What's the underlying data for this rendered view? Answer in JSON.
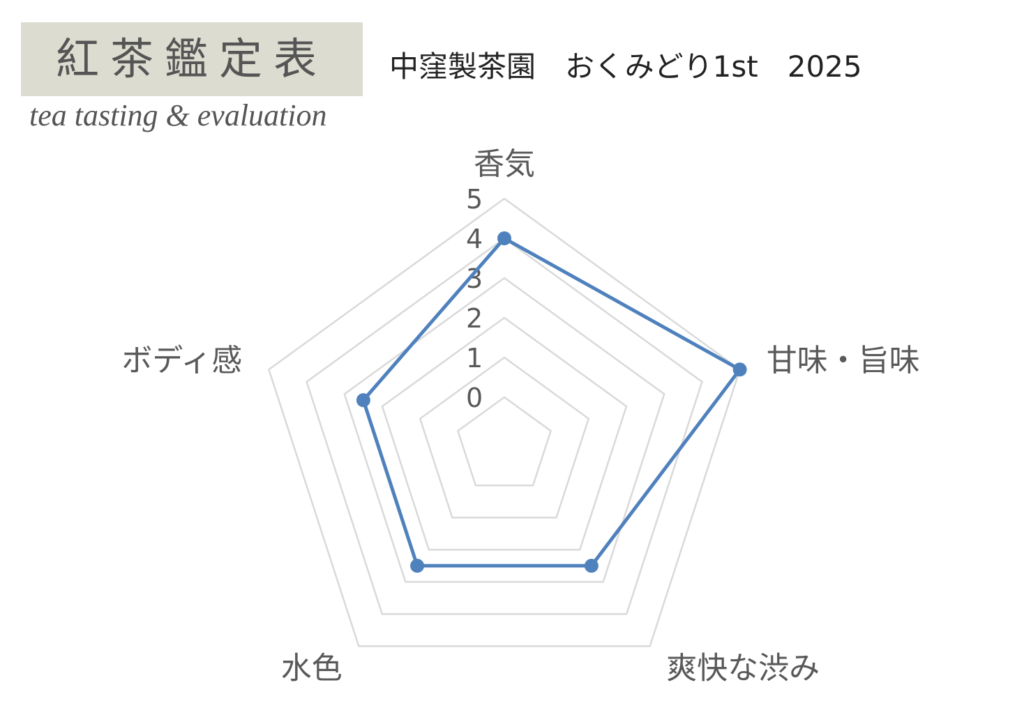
{
  "header": {
    "title": "紅茶鑑定表",
    "subtitle": "tea tasting & evaluation",
    "box_color": "#dcdcd0"
  },
  "chart_data": {
    "type": "radar",
    "title": "中窪製茶園　おくみどり1st　2025",
    "categories": [
      "香気",
      "甘味・旨味",
      "爽快な渋み",
      "水色",
      "ボディ感"
    ],
    "values": [
      4,
      5,
      2.5,
      2.5,
      2.5
    ],
    "rlim": [
      0,
      5
    ],
    "ticks": [
      0,
      1,
      2,
      3,
      4,
      5
    ],
    "tick_labels": [
      "0",
      "1",
      "2",
      "3",
      "4",
      "5"
    ],
    "grid": true,
    "series_color": "#4f81bd",
    "grid_color": "#d9d9d9"
  }
}
